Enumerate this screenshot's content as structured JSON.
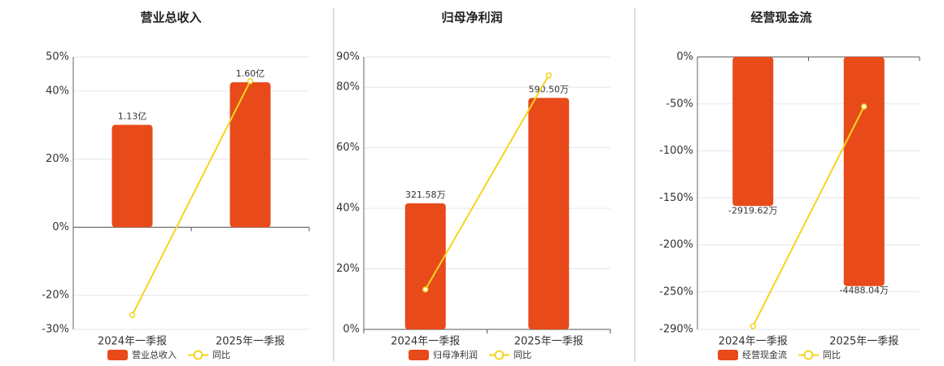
{
  "chart_data": [
    {
      "type": "bar",
      "title": "营业总收入",
      "categories": [
        "2024年一季报",
        "2025年一季报"
      ],
      "ylim": [
        -30,
        50
      ],
      "yticks": [
        {
          "value": -30,
          "label": "-30%"
        },
        {
          "value": -20,
          "label": "-20%"
        },
        {
          "value": 0,
          "label": "0%"
        },
        {
          "value": 20,
          "label": "20%"
        },
        {
          "value": 40,
          "label": "40%"
        },
        {
          "value": 50,
          "label": "50%"
        }
      ],
      "y2lim": [
        -112800000,
        188000000
      ],
      "grid": true,
      "series": [
        {
          "name": "营业总收入",
          "type": "bar",
          "axis": "y2",
          "color": "#e84a1a",
          "values": [
            113000000,
            160000000
          ],
          "value_labels": [
            "1.13亿",
            "1.60亿"
          ]
        },
        {
          "name": "同比",
          "type": "line",
          "color": "#f2d51f",
          "values": [
            -25.8,
            42.9
          ]
        }
      ]
    },
    {
      "type": "bar",
      "title": "归母净利润",
      "categories": [
        "2024年一季报",
        "2025年一季报"
      ],
      "ylim": [
        0,
        90
      ],
      "yticks": [
        {
          "value": 0,
          "label": "0%"
        },
        {
          "value": 20,
          "label": "20%"
        },
        {
          "value": 40,
          "label": "40%"
        },
        {
          "value": 60,
          "label": "60%"
        },
        {
          "value": 80,
          "label": "80%"
        },
        {
          "value": 90,
          "label": "90%"
        }
      ],
      "y2lim": [
        0,
        6950000
      ],
      "grid": true,
      "series": [
        {
          "name": "归母净利润",
          "type": "bar",
          "axis": "y2",
          "color": "#e84a1a",
          "values": [
            3215800,
            5905000
          ],
          "value_labels": [
            "321.58万",
            "590.50万"
          ]
        },
        {
          "name": "同比",
          "type": "line",
          "color": "#f2d51f",
          "values": [
            13.2,
            83.9
          ]
        }
      ]
    },
    {
      "type": "bar",
      "title": "经营现金流",
      "categories": [
        "2024年一季报",
        "2025年一季报"
      ],
      "ylim": [
        -290,
        0
      ],
      "yticks": [
        {
          "value": -290,
          "label": "-290%"
        },
        {
          "value": -250,
          "label": "-250%"
        },
        {
          "value": -200,
          "label": "-200%"
        },
        {
          "value": -150,
          "label": "-150%"
        },
        {
          "value": -100,
          "label": "-100%"
        },
        {
          "value": -50,
          "label": "-50%"
        },
        {
          "value": 0,
          "label": "0%"
        }
      ],
      "y2lim": [
        -53370000,
        0
      ],
      "grid": true,
      "series": [
        {
          "name": "经营现金流",
          "type": "bar",
          "axis": "y2",
          "color": "#e84a1a",
          "values": [
            -29196200,
            -44880400
          ],
          "value_labels": [
            "-2919.62万",
            "-4488.04万"
          ]
        },
        {
          "name": "同比",
          "type": "line",
          "color": "#f2d51f",
          "values": [
            -286.6,
            -52.8
          ]
        }
      ]
    }
  ]
}
